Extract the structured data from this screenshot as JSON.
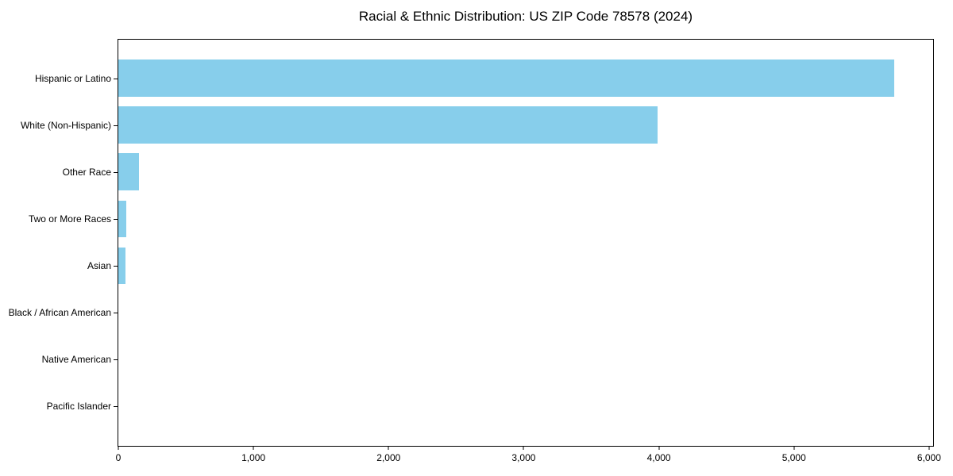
{
  "chart_data": {
    "type": "bar",
    "orientation": "horizontal",
    "title": "Racial & Ethnic Distribution: US ZIP Code 78578 (2024)",
    "categories": [
      "Hispanic or Latino",
      "White (Non-Hispanic)",
      "Other Race",
      "Two or More Races",
      "Asian",
      "Black / African American",
      "Native American",
      "Pacific Islander"
    ],
    "values": [
      5740,
      3990,
      155,
      60,
      50,
      0,
      0,
      0
    ],
    "bar_color": "#87CEEB",
    "text_color": "#000000",
    "background_color": "#ffffff",
    "xlabel": "",
    "ylabel": "",
    "xlim": [
      0,
      6030
    ],
    "x_ticks": [
      {
        "value": 0,
        "label": "0"
      },
      {
        "value": 1000,
        "label": "1,000"
      },
      {
        "value": 2000,
        "label": "2,000"
      },
      {
        "value": 3000,
        "label": "3,000"
      },
      {
        "value": 4000,
        "label": "4,000"
      },
      {
        "value": 5000,
        "label": "5,000"
      },
      {
        "value": 6000,
        "label": "6,000"
      }
    ],
    "grid": false,
    "legend": false,
    "bar_height_fraction": 0.8
  }
}
